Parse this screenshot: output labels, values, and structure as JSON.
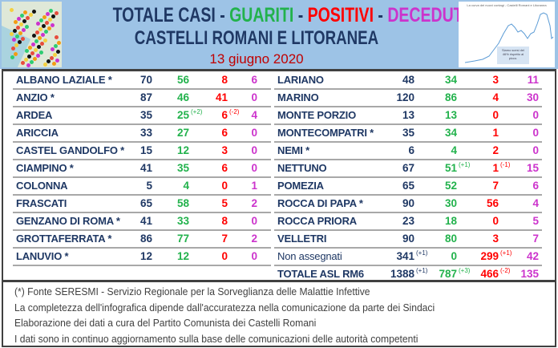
{
  "header": {
    "title_parts": [
      {
        "text": "TOTALE CASI",
        "color": "#1f3864"
      },
      {
        "text": " - ",
        "color": "#1f3864"
      },
      {
        "text": "GUARITI",
        "color": "#22b24c"
      },
      {
        "text": " - ",
        "color": "#1f3864"
      },
      {
        "text": "POSITIVI",
        "color": "#ff0000"
      },
      {
        "text": " - ",
        "color": "#1f3864"
      },
      {
        "text": "DECEDUTI",
        "color": "#cc33cc"
      }
    ],
    "subtitle": "CASTELLI ROMANI E LITORANEA",
    "date": "13 giugno 2020",
    "chart_title": "La curva dei nuovi contagi - Castelli Romani e Litoranea",
    "chart_note": "Siamo scesi del 46% rispetto al picco."
  },
  "colors": {
    "totale": "#1f3864",
    "guariti": "#22b24c",
    "positivi": "#ff0000",
    "deceduti": "#cc33cc",
    "header_bg": "#9dc3e6"
  },
  "left_rows": [
    {
      "name": "ALBANO LAZIALE *",
      "tot": "70",
      "gu": "56",
      "po": "8",
      "de": "6"
    },
    {
      "name": "ANZIO *",
      "tot": "87",
      "gu": "46",
      "po": "41",
      "de": "0"
    },
    {
      "name": "ARDEA",
      "tot": "35",
      "gu": "25",
      "gu_d": "(+2)",
      "po": "6",
      "po_d": "(-2)",
      "de": "4"
    },
    {
      "name": "ARICCIA",
      "tot": "33",
      "gu": "27",
      "po": "6",
      "de": "0"
    },
    {
      "name": "CASTEL GANDOLFO *",
      "tot": "15",
      "gu": "12",
      "po": "3",
      "de": "0"
    },
    {
      "name": "CIAMPINO *",
      "tot": "41",
      "gu": "35",
      "po": "6",
      "de": "0"
    },
    {
      "name": "COLONNA",
      "tot": "5",
      "gu": "4",
      "po": "0",
      "de": "1"
    },
    {
      "name": "FRASCATI",
      "tot": "65",
      "gu": "58",
      "po": "5",
      "de": "2"
    },
    {
      "name": "GENZANO DI ROMA *",
      "tot": "41",
      "gu": "33",
      "po": "8",
      "de": "0"
    },
    {
      "name": "GROTTAFERRATA *",
      "tot": "86",
      "gu": "77",
      "po": "7",
      "de": "2"
    },
    {
      "name": "LANUVIO *",
      "tot": "12",
      "gu": "12",
      "po": "0",
      "de": "0"
    }
  ],
  "right_rows": [
    {
      "name": "LARIANO",
      "tot": "48",
      "gu": "34",
      "po": "3",
      "de": "11"
    },
    {
      "name": "MARINO",
      "tot": "120",
      "gu": "86",
      "po": "4",
      "de": "30"
    },
    {
      "name": "MONTE PORZIO",
      "tot": "13",
      "gu": "13",
      "po": "0",
      "de": "0"
    },
    {
      "name": "MONTECOMPATRI *",
      "tot": "35",
      "gu": "34",
      "po": "1",
      "de": "0"
    },
    {
      "name": "NEMI *",
      "tot": "6",
      "gu": "4",
      "po": "2",
      "de": "0"
    },
    {
      "name": "NETTUNO",
      "tot": "67",
      "gu": "51",
      "gu_d": "(+1)",
      "po": "1",
      "po_d": "(-1)",
      "de": "15"
    },
    {
      "name": "POMEZIA",
      "tot": "65",
      "gu": "52",
      "po": "7",
      "de": "6"
    },
    {
      "name": "ROCCA DI PAPA *",
      "tot": "90",
      "gu": "30",
      "po": "56",
      "de": "4"
    },
    {
      "name": "ROCCA PRIORA",
      "tot": "23",
      "gu": "18",
      "po": "0",
      "de": "5"
    },
    {
      "name": "VELLETRI",
      "tot": "90",
      "gu": "80",
      "po": "3",
      "de": "7"
    },
    {
      "name": "Non assegnati",
      "tot": "341",
      "tot_d": "(+1)",
      "gu": "0",
      "po": "299",
      "po_d": "(+1)",
      "de": "42"
    },
    {
      "name": "TOTALE ASL RM6",
      "tot": "1388",
      "tot_d": "(+1)",
      "gu": "787",
      "gu_d": "(+3)",
      "po": "466",
      "po_d": "(-2)",
      "de": "135"
    }
  ],
  "footer": [
    "(*) Fonte SERESMI - Servizio Regionale per la Sorveglianza delle Malattie Infettive",
    "La completezza dell'infografica dipende dall'accuratezza nella comunicazione da parte dei Sindaci",
    "Elaborazione dei dati a cura del Partito Comunista dei Castelli Romani",
    "I dati sono in continuo aggiornamento sulla base delle comunicazioni delle autorità competenti"
  ]
}
